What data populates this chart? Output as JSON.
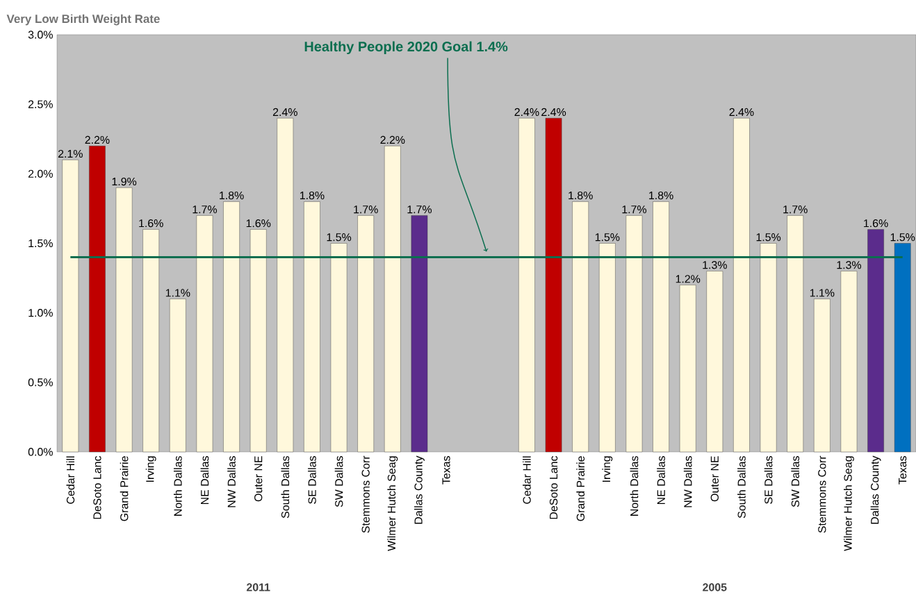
{
  "chart_data": {
    "type": "bar",
    "title": "Very Low Birth Weight Rate",
    "categories": [
      "Cedar Hill",
      "DeSoto Lanc",
      "Grand Prairie",
      "Irving",
      "North Dallas",
      "NE Dallas",
      "NW Dallas",
      "Outer NE",
      "South Dallas",
      "SE Dallas",
      "SW Dallas",
      "Stemmons Corr",
      "Wilmer Hutch Seag",
      "Dallas County",
      "Texas",
      null,
      null,
      "Cedar Hill",
      "DeSoto Lanc",
      "Grand Prairie",
      "Irving",
      "North Dallas",
      "NE Dallas",
      "NW Dallas",
      "Outer NE",
      "South Dallas",
      "SE Dallas",
      "SW Dallas",
      "Stemmons Corr",
      "Wilmer Hutch Seag",
      "Dallas County",
      "Texas"
    ],
    "values": [
      2.1,
      2.2,
      1.9,
      1.6,
      1.1,
      1.7,
      1.8,
      1.6,
      2.4,
      1.8,
      1.5,
      1.7,
      2.2,
      1.7,
      null,
      null,
      null,
      2.4,
      2.4,
      1.8,
      1.5,
      1.7,
      1.8,
      1.2,
      1.3,
      2.4,
      1.5,
      1.7,
      1.1,
      1.3,
      1.6,
      1.5
    ],
    "value_labels": [
      "2.1%",
      "2.2%",
      "1.9%",
      "1.6%",
      "1.1%",
      "1.7%",
      "1.8%",
      "1.6%",
      "2.4%",
      "1.8%",
      "1.5%",
      "1.7%",
      "2.2%",
      "1.7%",
      null,
      null,
      null,
      "2.4%",
      "2.4%",
      "1.8%",
      "1.5%",
      "1.7%",
      "1.8%",
      "1.2%",
      "1.3%",
      "2.4%",
      "1.5%",
      "1.7%",
      "1.1%",
      "1.3%",
      "1.6%",
      "1.5%"
    ],
    "colors": [
      "#fff8dc",
      "#c00000",
      "#fff8dc",
      "#fff8dc",
      "#fff8dc",
      "#fff8dc",
      "#fff8dc",
      "#fff8dc",
      "#fff8dc",
      "#fff8dc",
      "#fff8dc",
      "#fff8dc",
      "#fff8dc",
      "#5b2c8c",
      "#fff8dc",
      "#fff8dc",
      "#fff8dc",
      "#fff8dc",
      "#c00000",
      "#fff8dc",
      "#fff8dc",
      "#fff8dc",
      "#fff8dc",
      "#fff8dc",
      "#fff8dc",
      "#fff8dc",
      "#fff8dc",
      "#fff8dc",
      "#fff8dc",
      "#fff8dc",
      "#5b2c8c",
      "#0070c0"
    ],
    "ylim": [
      0,
      3.0
    ],
    "yticks": [
      {
        "value": 0,
        "label": "0.0%"
      },
      {
        "value": 0.5,
        "label": "0.5%"
      },
      {
        "value": 1.0,
        "label": "1.0%"
      },
      {
        "value": 1.5,
        "label": "1.5%"
      },
      {
        "value": 2.0,
        "label": "2.0%"
      },
      {
        "value": 2.5,
        "label": "2.5%"
      },
      {
        "value": 3.0,
        "label": "3.0%"
      }
    ],
    "ref_lines": [
      {
        "axis": "y",
        "value": 1.4,
        "label": "Healthy People 2020 Goal 1.4%",
        "color": "#0b6e4f"
      }
    ],
    "annotations": [
      "2011",
      "2005"
    ],
    "grid": false
  }
}
